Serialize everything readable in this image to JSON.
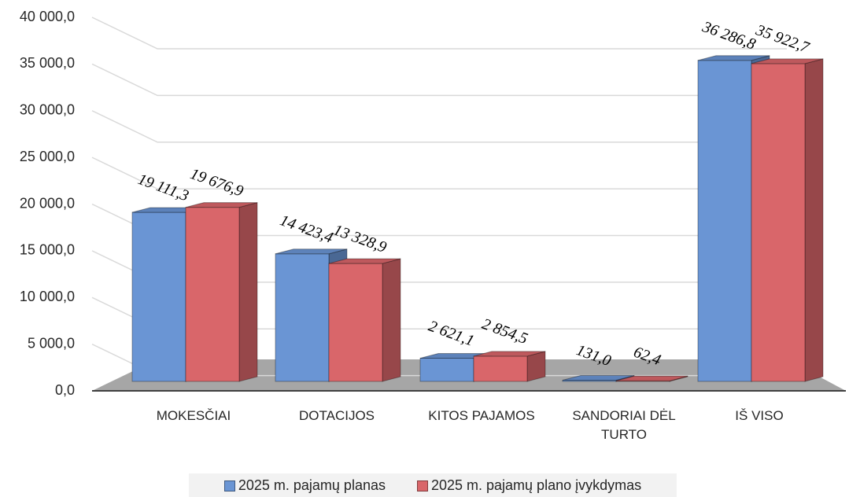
{
  "chart_data": {
    "type": "bar3d",
    "categories": [
      "MOKESČIAI",
      "DOTACIJOS",
      "KITOS PAJAMOS",
      "SANDORIAI DĖL TURTO",
      "IŠ VISO"
    ],
    "series": [
      {
        "name": "2025 m. pajamų planas",
        "color": "#6a95d4",
        "values": [
          19111.3,
          14423.4,
          2621.1,
          131.0,
          36286.8
        ],
        "value_labels": [
          "19 111,3",
          "14 423,4",
          "2 621,1",
          "131,0",
          "36 286,8"
        ]
      },
      {
        "name": "2025 m. pajamų plano įvykdymas",
        "color": "#d9666a",
        "values": [
          19676.9,
          13328.9,
          2854.5,
          62.4,
          35922.7
        ],
        "value_labels": [
          "19 676,9",
          "13 328,9",
          "2 854,5",
          "62,4",
          "35 922,7"
        ]
      }
    ],
    "ylim": [
      0,
      40000
    ],
    "yticks": [
      {
        "value": 0,
        "label": "0,0"
      },
      {
        "value": 5000,
        "label": "5 000,0"
      },
      {
        "value": 10000,
        "label": "10 000,0"
      },
      {
        "value": 15000,
        "label": "15 000,0"
      },
      {
        "value": 20000,
        "label": "20 000,0"
      },
      {
        "value": 25000,
        "label": "25 000,0"
      },
      {
        "value": 30000,
        "label": "30 000,0"
      },
      {
        "value": 35000,
        "label": "35 000,0"
      },
      {
        "value": 40000,
        "label": "40 000,0"
      }
    ],
    "grid": true
  }
}
